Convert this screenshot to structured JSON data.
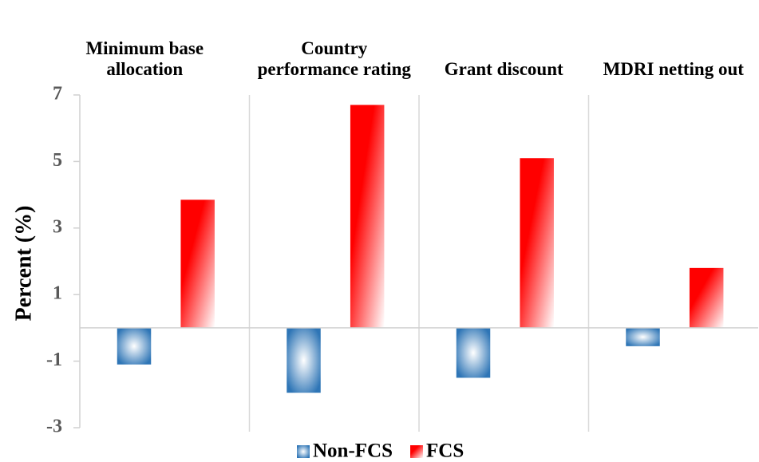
{
  "chart_data": {
    "type": "bar",
    "categories": [
      "Minimum base allocation",
      "Country performance rating",
      "Grant discount",
      "MDRI netting out"
    ],
    "series": [
      {
        "name": "Non-FCS",
        "color": "#2e75b6",
        "values": [
          -1.1,
          -1.95,
          -1.5,
          -0.55
        ]
      },
      {
        "name": "FCS",
        "color": "#ff0000",
        "values": [
          3.85,
          6.7,
          5.1,
          1.8
        ]
      }
    ],
    "ylabel": "Percent (%)",
    "ylim": [
      -3,
      7
    ],
    "yticks": [
      -3,
      -1,
      1,
      3,
      5,
      7
    ],
    "legend": "bottom"
  }
}
